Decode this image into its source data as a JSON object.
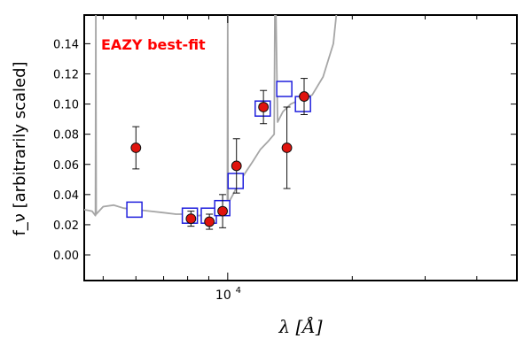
{
  "chart_data": {
    "type": "scatter",
    "title": "",
    "annotation": "EAZY best-fit",
    "xlabel": "λ [Å]",
    "ylabel": "f_ν [arbitrarily scaled]",
    "x_scale": "log",
    "xlim": [
      4500,
      50000
    ],
    "ylim": [
      -0.017,
      0.159
    ],
    "yticks": [
      0.0,
      0.02,
      0.04,
      0.06,
      0.08,
      0.1,
      0.12,
      0.14
    ],
    "ytick_labels": [
      "0.00",
      "0.02",
      "0.04",
      "0.06",
      "0.08",
      "0.10",
      "0.12",
      "0.14"
    ],
    "xticks_major": [
      10000
    ],
    "xtick_major_labels": [
      {
        "base": "10",
        "exp": "4"
      }
    ],
    "xticks_minor": [
      5000,
      6000,
      7000,
      8000,
      9000,
      20000,
      30000,
      40000,
      50000
    ],
    "grid": false,
    "legend": "none",
    "colors": {
      "observed_fill": "#e0140e",
      "observed_edge": "#111111",
      "model_photometry": "#1f1fdd",
      "template": "#a6a6a6",
      "annotation": "#ff0000",
      "axes": "#000000"
    },
    "series": [
      {
        "kind": "observed",
        "points": [
          {
            "x": 6000,
            "y": 0.071,
            "yerr_low": 0.014,
            "yerr_high": 0.014
          },
          {
            "x": 8150,
            "y": 0.024,
            "yerr_low": 0.005,
            "yerr_high": 0.005
          },
          {
            "x": 9030,
            "y": 0.022,
            "yerr_low": 0.005,
            "yerr_high": 0.005
          },
          {
            "x": 9720,
            "y": 0.029,
            "yerr_low": 0.011,
            "yerr_high": 0.011
          },
          {
            "x": 10500,
            "y": 0.059,
            "yerr_low": 0.018,
            "yerr_high": 0.018
          },
          {
            "x": 12200,
            "y": 0.098,
            "yerr_low": 0.011,
            "yerr_high": 0.011
          },
          {
            "x": 13900,
            "y": 0.071,
            "yerr_low": 0.027,
            "yerr_high": 0.027
          },
          {
            "x": 15300,
            "y": 0.105,
            "yerr_low": 0.012,
            "yerr_high": 0.012
          }
        ]
      },
      {
        "kind": "model_photometry",
        "points": [
          {
            "x": 5950,
            "y": 0.03
          },
          {
            "x": 8100,
            "y": 0.026
          },
          {
            "x": 9000,
            "y": 0.026
          },
          {
            "x": 9700,
            "y": 0.031
          },
          {
            "x": 10450,
            "y": 0.049
          },
          {
            "x": 12150,
            "y": 0.097
          },
          {
            "x": 13700,
            "y": 0.11
          },
          {
            "x": 15200,
            "y": 0.1
          }
        ]
      },
      {
        "kind": "template",
        "points": [
          {
            "x": 4500,
            "y": 0.03
          },
          {
            "x": 4700,
            "y": 0.029
          },
          {
            "x": 4790,
            "y": 0.026
          },
          {
            "x": 4800,
            "y": 0.159
          },
          {
            "x": 4810,
            "y": 0.027
          },
          {
            "x": 5000,
            "y": 0.032
          },
          {
            "x": 5300,
            "y": 0.033
          },
          {
            "x": 5600,
            "y": 0.031
          },
          {
            "x": 6000,
            "y": 0.03
          },
          {
            "x": 6500,
            "y": 0.029
          },
          {
            "x": 7000,
            "y": 0.028
          },
          {
            "x": 7500,
            "y": 0.027
          },
          {
            "x": 8000,
            "y": 0.027
          },
          {
            "x": 8500,
            "y": 0.026
          },
          {
            "x": 9000,
            "y": 0.027
          },
          {
            "x": 9500,
            "y": 0.028
          },
          {
            "x": 9980,
            "y": 0.03
          },
          {
            "x": 10000,
            "y": 0.159
          },
          {
            "x": 10020,
            "y": 0.034
          },
          {
            "x": 10300,
            "y": 0.04
          },
          {
            "x": 10600,
            "y": 0.047
          },
          {
            "x": 11000,
            "y": 0.054
          },
          {
            "x": 11500,
            "y": 0.062
          },
          {
            "x": 12000,
            "y": 0.07
          },
          {
            "x": 12500,
            "y": 0.075
          },
          {
            "x": 12950,
            "y": 0.08
          },
          {
            "x": 13000,
            "y": 0.159
          },
          {
            "x": 13080,
            "y": 0.159
          },
          {
            "x": 13200,
            "y": 0.088
          },
          {
            "x": 13600,
            "y": 0.095
          },
          {
            "x": 14200,
            "y": 0.1
          },
          {
            "x": 15000,
            "y": 0.103
          },
          {
            "x": 16000,
            "y": 0.106
          },
          {
            "x": 17000,
            "y": 0.118
          },
          {
            "x": 18000,
            "y": 0.14
          },
          {
            "x": 18300,
            "y": 0.159
          }
        ]
      }
    ]
  }
}
